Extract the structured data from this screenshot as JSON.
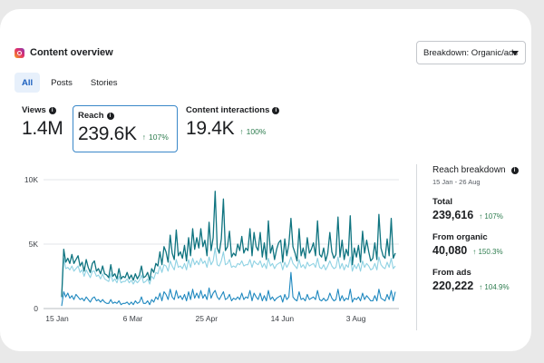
{
  "header": {
    "title": "Content overview",
    "icon": "instagram-icon"
  },
  "breakdown": {
    "label": "Breakdown: Organic/ads"
  },
  "tabs": [
    {
      "label": "All",
      "active": true
    },
    {
      "label": "Posts",
      "active": false
    },
    {
      "label": "Stories",
      "active": false
    }
  ],
  "metrics": {
    "views": {
      "label": "Views",
      "value": "1.4M",
      "change": ""
    },
    "reach": {
      "label": "Reach",
      "value": "239.6K",
      "change": "107%"
    },
    "interactions": {
      "label": "Content interactions",
      "value": "19.4K",
      "change": "100%"
    }
  },
  "reach_breakdown": {
    "title": "Reach breakdown",
    "date_range": "15 Jan - 26 Aug",
    "stats": [
      {
        "label": "Total",
        "value": "239,616",
        "change": "107%"
      },
      {
        "label": "From organic",
        "value": "40,080",
        "change": "150.3%"
      },
      {
        "label": "From ads",
        "value": "220,222",
        "change": "104.9%"
      }
    ]
  },
  "colors": {
    "total": "#0f7480",
    "ads": "#8fd2e3",
    "organic": "#1e88bf",
    "positive": "#2e7d4f"
  },
  "chart_data": {
    "type": "line",
    "ylim": [
      0,
      10000
    ],
    "y_ticks": [
      "0",
      "5K",
      "10K"
    ],
    "x_ticks": [
      "15 Jan",
      "6 Mar",
      "25 Apr",
      "14 Jun",
      "3 Aug"
    ],
    "grid": true,
    "series": [
      {
        "values": [
          900,
          4600,
          3600,
          3900,
          3500,
          4200,
          3500,
          3800,
          4100,
          3300,
          3600,
          2900,
          3800,
          3200,
          2800,
          3500,
          3700,
          2900,
          3100,
          2700,
          3300,
          2700,
          2600,
          2400,
          3400,
          2500,
          2700,
          2300,
          3100,
          2300,
          2500,
          2400,
          2800,
          2300,
          2600,
          2200,
          2700,
          2300,
          2600,
          3300,
          2400,
          2500,
          2800,
          2200,
          3100,
          2800,
          3500,
          3300,
          4400,
          3400,
          4800,
          4400,
          3600,
          5700,
          4300,
          3800,
          6100,
          4100,
          4400,
          3900,
          4900,
          3700,
          5500,
          4100,
          6200,
          4600,
          5500,
          4700,
          6200,
          4800,
          5300,
          4100,
          6700,
          4500,
          5500,
          9100,
          4700,
          4300,
          5400,
          8500,
          4500,
          4800,
          6000,
          4000,
          4300,
          4100,
          5000,
          4500,
          5600,
          4300,
          4700,
          4500,
          6200,
          4100,
          5900,
          4800,
          4500,
          5900,
          4000,
          5100,
          3800,
          6800,
          4300,
          4900,
          3800,
          4600,
          5100,
          5300,
          3600,
          5400,
          4100,
          5000,
          7000,
          4800,
          4300,
          3700,
          6200,
          4100,
          4700,
          3900,
          5500,
          4300,
          4600,
          5100,
          4100,
          6800,
          4200,
          4000,
          4700,
          3700,
          4300,
          5900,
          4400,
          3900,
          4200,
          7100,
          4000,
          5300,
          3800,
          4600,
          4100,
          7200,
          3400,
          4700,
          4000,
          4900,
          3600,
          6000,
          4300,
          5300,
          4400,
          3700,
          3900,
          5100,
          3800,
          7300,
          4700,
          4100,
          3900,
          5400,
          4100,
          7000,
          3900,
          4300
        ]
      },
      {
        "values": [
          800,
          3900,
          3100,
          3200,
          3000,
          3300,
          2900,
          3100,
          3300,
          2800,
          3000,
          2500,
          3000,
          2700,
          2400,
          2900,
          2900,
          2500,
          2600,
          2300,
          2700,
          2300,
          2200,
          2100,
          2700,
          2100,
          2300,
          2000,
          2500,
          2000,
          2100,
          2100,
          2300,
          2000,
          2200,
          1900,
          2200,
          2000,
          2200,
          2600,
          2000,
          2100,
          2300,
          1900,
          2500,
          2300,
          2800,
          2700,
          3300,
          2800,
          3400,
          3300,
          2900,
          3700,
          3300,
          3000,
          3800,
          3200,
          3300,
          3100,
          3500,
          3000,
          3800,
          3200,
          3900,
          3400,
          3700,
          3400,
          3900,
          3500,
          3700,
          3200,
          4000,
          3400,
          3700,
          4700,
          3400,
          3300,
          3700,
          4400,
          3400,
          3500,
          3800,
          3200,
          3300,
          3200,
          3500,
          3400,
          3700,
          3300,
          3400,
          3400,
          3800,
          3200,
          3700,
          3500,
          3400,
          3700,
          3200,
          3500,
          3100,
          3900,
          3300,
          3500,
          3100,
          3400,
          3500,
          3600,
          3000,
          3600,
          3200,
          3500,
          4000,
          3500,
          3300,
          3100,
          3800,
          3200,
          3400,
          3100,
          3600,
          3300,
          3400,
          3500,
          3200,
          3900,
          3200,
          3100,
          3400,
          3000,
          3300,
          3700,
          3300,
          3100,
          3200,
          4000,
          3100,
          3500,
          3000,
          3400,
          3200,
          4000,
          2900,
          3400,
          3100,
          3500,
          2900,
          3700,
          3200,
          3500,
          3300,
          3000,
          3100,
          3500,
          3000,
          4000,
          3400,
          3200,
          3100,
          3600,
          3200,
          3900,
          3100,
          3300
        ]
      },
      {
        "values": [
          200,
          1300,
          900,
          1200,
          800,
          1000,
          700,
          1100,
          900,
          700,
          800,
          600,
          900,
          700,
          500,
          800,
          900,
          600,
          700,
          500,
          700,
          500,
          400,
          400,
          700,
          400,
          500,
          400,
          600,
          300,
          400,
          400,
          500,
          300,
          500,
          300,
          600,
          400,
          500,
          900,
          400,
          400,
          600,
          300,
          700,
          500,
          900,
          700,
          1200,
          600,
          1300,
          1100,
          700,
          1500,
          900,
          700,
          1400,
          800,
          1000,
          700,
          1100,
          600,
          1300,
          700,
          1500,
          800,
          1200,
          800,
          1400,
          800,
          1100,
          700,
          1600,
          800,
          1200,
          1400,
          900,
          700,
          1000,
          1300,
          700,
          800,
          1100,
          600,
          800,
          700,
          900,
          700,
          1200,
          700,
          900,
          800,
          1400,
          600,
          1200,
          900,
          700,
          1200,
          600,
          1000,
          600,
          1400,
          700,
          900,
          600,
          800,
          900,
          1000,
          500,
          1100,
          700,
          900,
          2800,
          900,
          700,
          600,
          1300,
          700,
          800,
          600,
          1100,
          700,
          800,
          900,
          700,
          1400,
          700,
          600,
          800,
          600,
          700,
          1200,
          800,
          600,
          700,
          1500,
          600,
          1000,
          600,
          800,
          700,
          1500,
          500,
          800,
          700,
          900,
          600,
          1200,
          700,
          1000,
          800,
          600,
          600,
          1000,
          600,
          1500,
          800,
          700,
          600,
          1100,
          700,
          1400,
          600,
          1300
        ]
      }
    ]
  }
}
